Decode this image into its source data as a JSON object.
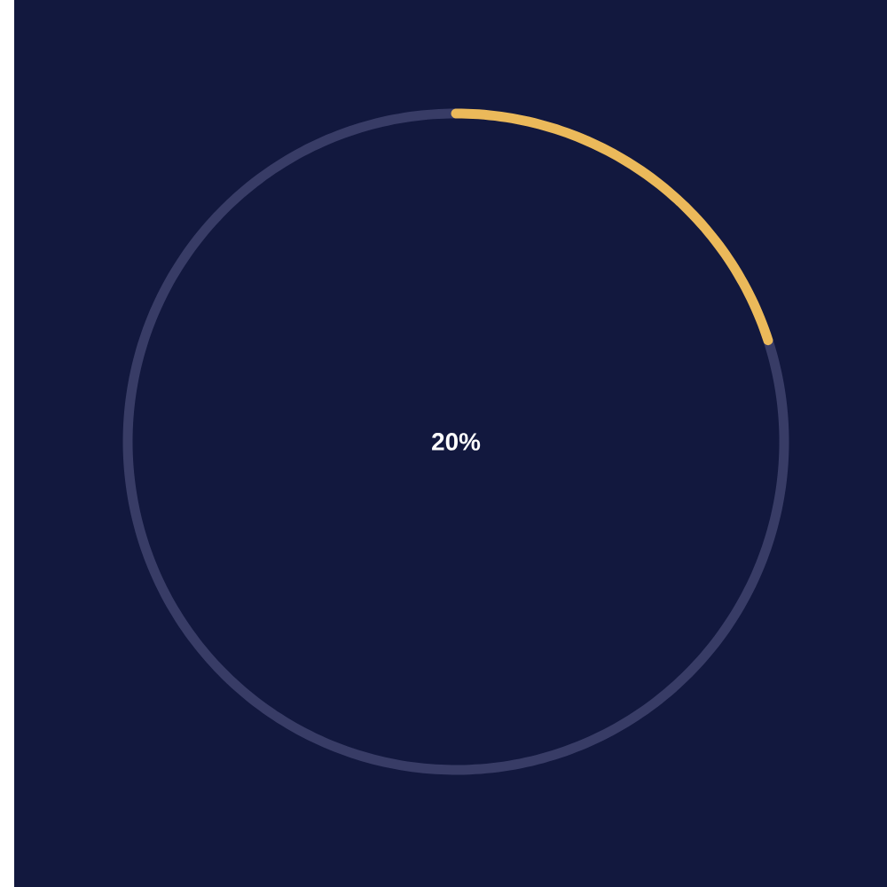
{
  "chart_data": {
    "type": "donut",
    "categories": [
      null,
      null
    ],
    "values": [
      20,
      80
    ],
    "colors": [
      "#ebb95a",
      "#383c66"
    ],
    "annotations": [
      "20%"
    ]
  }
}
